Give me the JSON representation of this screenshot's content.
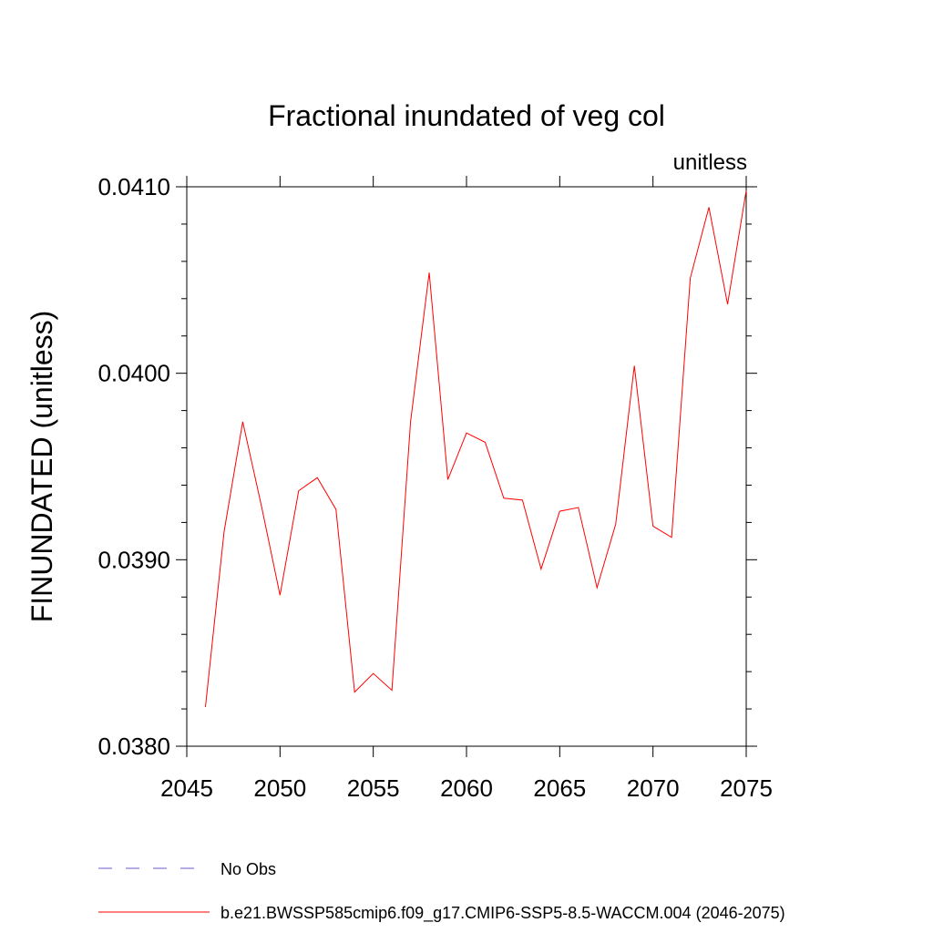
{
  "chart_data": {
    "type": "line",
    "title": "Fractional inundated of veg col",
    "units_label": "unitless",
    "ylabel": "FINUNDATED  (unitless)",
    "xlabel": "",
    "xlim": [
      2045,
      2075
    ],
    "ylim": [
      0.038,
      0.041
    ],
    "x_ticks": [
      2045,
      2050,
      2055,
      2060,
      2065,
      2070,
      2075
    ],
    "x_tick_labels": [
      "2045",
      "2050",
      "2055",
      "2060",
      "2065",
      "2070",
      "2075"
    ],
    "y_ticks": [
      0.038,
      0.039,
      0.04,
      0.041
    ],
    "y_tick_labels": [
      "0.0380",
      "0.0390",
      "0.0400",
      "0.0410"
    ],
    "grid": false,
    "legend_position": "bottom",
    "series": [
      {
        "name": "No Obs",
        "color": "#6a5acd",
        "dash": "dashed",
        "x": [],
        "values": []
      },
      {
        "name": "b.e21.BWSSP585cmip6.f09_g17.CMIP6-SSP5-8.5-WACCM.004 (2046-2075)",
        "color": "#ff0000",
        "dash": "solid",
        "x": [
          2046,
          2047,
          2048,
          2049,
          2050,
          2051,
          2052,
          2053,
          2054,
          2055,
          2056,
          2057,
          2058,
          2059,
          2060,
          2061,
          2062,
          2063,
          2064,
          2065,
          2066,
          2067,
          2068,
          2069,
          2070,
          2071,
          2072,
          2073,
          2074,
          2075
        ],
        "values": [
          0.03821,
          0.03915,
          0.03974,
          0.03929,
          0.03881,
          0.03937,
          0.03944,
          0.03927,
          0.03829,
          0.03839,
          0.0383,
          0.03974,
          0.04054,
          0.03943,
          0.03968,
          0.03963,
          0.03933,
          0.03932,
          0.03895,
          0.03926,
          0.03928,
          0.03885,
          0.03919,
          0.04004,
          0.03918,
          0.03912,
          0.04051,
          0.04089,
          0.04037,
          0.04098
        ]
      }
    ]
  }
}
